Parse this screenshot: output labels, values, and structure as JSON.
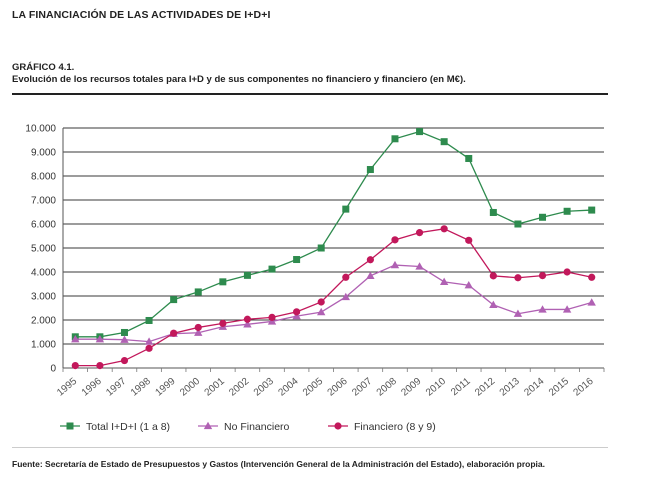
{
  "header": {
    "section_title": "LA FINANCIACIÓN DE LAS ACTIVIDADES DE I+D+I"
  },
  "figure": {
    "number": "GRÁFICO 4.1.",
    "caption": "Evolución de los recursos totales para I+D y de sus componentes no financiero y financiero (en M€)."
  },
  "chart_data": {
    "type": "line",
    "title": "Evolución de los recursos totales para I+D y de sus componentes no financiero y financiero (en M€).",
    "xlabel": "",
    "ylabel": "",
    "ylim": [
      0,
      10000
    ],
    "yticks": [
      0,
      1000,
      2000,
      3000,
      4000,
      5000,
      6000,
      7000,
      8000,
      9000,
      10000
    ],
    "ytick_labels": [
      "0",
      "1.000",
      "2.000",
      "3.000",
      "4.000",
      "5.000",
      "6.000",
      "7.000",
      "8.000",
      "9.000",
      "10.000"
    ],
    "x": [
      "1995",
      "1996",
      "1997",
      "1998",
      "1999",
      "2000",
      "2001",
      "2002",
      "2003",
      "2004",
      "2005",
      "2006",
      "2007",
      "2008",
      "2009",
      "2010",
      "2011",
      "2012",
      "2013",
      "2014",
      "2015",
      "2016"
    ],
    "grid": true,
    "legend_position": "bottom",
    "series": [
      {
        "name": "Total I+D+I (1 a 8)",
        "marker": "square",
        "color": "#2e8b4e",
        "values": [
          1300,
          1300,
          1480,
          1980,
          2850,
          3170,
          3590,
          3860,
          4120,
          4520,
          5000,
          6620,
          8270,
          9550,
          9850,
          9430,
          8730,
          6480,
          6000,
          6280,
          6530,
          6580
        ]
      },
      {
        "name": "No Financiero",
        "marker": "triangle",
        "color": "#b061b3",
        "values": [
          1200,
          1200,
          1180,
          1100,
          1430,
          1470,
          1720,
          1820,
          1940,
          2160,
          2330,
          2960,
          3840,
          4290,
          4230,
          3590,
          3450,
          2630,
          2260,
          2440,
          2440,
          2730
        ]
      },
      {
        "name": "Financiero (8 y 9)",
        "marker": "circle",
        "color": "#c2185b",
        "values": [
          100,
          100,
          310,
          820,
          1450,
          1690,
          1860,
          2030,
          2110,
          2340,
          2750,
          3780,
          4510,
          5340,
          5640,
          5800,
          5320,
          3840,
          3760,
          3850,
          4000,
          3780
        ]
      }
    ]
  },
  "source": {
    "text": "Fuente: Secretaría de Estado de Presupuestos y Gastos (Intervención General de la Administración del Estado), elaboración propia."
  }
}
